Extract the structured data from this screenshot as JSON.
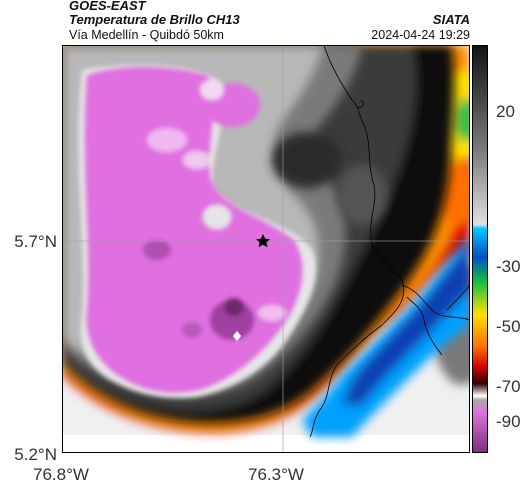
{
  "header": {
    "title_line1": "GOES-EAST",
    "title_line2": "Temperatura de Brillo CH13",
    "subtitle": "Vía Medellín - Quibdó 50km",
    "organization": "SIATA",
    "datetime": "2024-04-24 19:29"
  },
  "axes": {
    "lat_ticks": [
      "5.7°N",
      "5.2°N"
    ],
    "lon_ticks": [
      "76.8°W",
      "76.3°W"
    ]
  },
  "colorbar": {
    "tick_labels": [
      "20",
      "-30",
      "-50",
      "-70",
      "-90"
    ],
    "colors": {
      "warm_gray_top": "#222222",
      "light_gray": "#d8d8d8",
      "cyan": "#00c8ff",
      "blue": "#0050c8",
      "green": "#10c040",
      "yellow": "#ffe000",
      "red": "#e80000",
      "dark_red": "#500000",
      "magenta": "#e070e0",
      "purple": "#7a2f7a"
    }
  },
  "markers": {
    "star_icon": "black-star",
    "white_marker_icon": "white-diamond"
  }
}
